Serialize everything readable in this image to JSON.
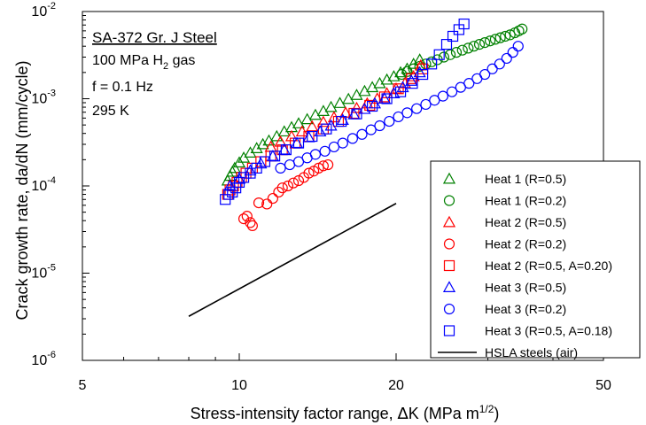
{
  "chart_data": {
    "type": "scatter",
    "xscale": "log",
    "yscale": "log",
    "xlim": [
      5,
      50
    ],
    "ylim": [
      1e-06,
      0.01
    ],
    "xticks": [
      {
        "value": 5,
        "label": "5"
      },
      {
        "value": 10,
        "label": "10"
      },
      {
        "value": 20,
        "label": "20"
      },
      {
        "value": 50,
        "label": "50"
      }
    ],
    "yticks": [
      {
        "value": 1e-06,
        "base": "10",
        "exp": "-6"
      },
      {
        "value": 1e-05,
        "base": "10",
        "exp": "-5"
      },
      {
        "value": 0.0001,
        "base": "10",
        "exp": "-4"
      },
      {
        "value": 0.001,
        "base": "10",
        "exp": "-3"
      },
      {
        "value": 0.01,
        "base": "10",
        "exp": "-2"
      }
    ],
    "xlabel": {
      "main": "Stress-intensity factor range, ",
      "delta": "∆",
      "rest": "K  (MPa m",
      "sup": "1/2",
      "close": ")"
    },
    "ylabel": "Crack growth rate, da/dN  (mm/cycle)",
    "annotation": {
      "title": "SA-372 Gr. J Steel",
      "line2_pre": "100 MPa H",
      "line2_sub": "2",
      "line2_post": " gas",
      "line3": "f = 0.1 Hz",
      "line4": "295 K"
    },
    "legend_position": "bottom-right",
    "series": [
      {
        "name": "Heat 1 (R=0.5)",
        "marker": "triangle",
        "color": "#008000",
        "x": [
          9.5,
          9.6,
          9.7,
          9.8,
          10.0,
          10.2,
          10.5,
          10.8,
          11.1,
          11.4,
          11.8,
          12.2,
          12.6,
          13.0,
          13.5,
          14.0,
          14.5,
          15.0,
          15.6,
          16.2,
          16.8,
          17.4,
          18.0,
          18.6,
          19.2,
          19.8,
          20.4,
          21.0,
          21.6,
          22.2
        ],
        "y": [
          0.000115,
          0.00013,
          0.000145,
          0.00016,
          0.000185,
          0.00021,
          0.00024,
          0.00027,
          0.0003,
          0.00033,
          0.00037,
          0.00042,
          0.00047,
          0.00052,
          0.00058,
          0.00065,
          0.00072,
          0.0008,
          0.00089,
          0.00099,
          0.0011,
          0.00122,
          0.00135,
          0.0015,
          0.00165,
          0.0018,
          0.002,
          0.0022,
          0.0025,
          0.0028
        ]
      },
      {
        "name": "Heat 1 (R=0.2)",
        "marker": "circle",
        "color": "#008000",
        "x": [
          20.5,
          21.0,
          21.6,
          22.2,
          22.8,
          23.4,
          24.0,
          24.7,
          25.4,
          26.1,
          26.8,
          27.5,
          28.2,
          28.9,
          29.6,
          30.3,
          31.0,
          31.7,
          32.4,
          33.1,
          33.8,
          34.4,
          34.9
        ],
        "y": [
          0.0019,
          0.00205,
          0.0022,
          0.00235,
          0.0025,
          0.00265,
          0.0028,
          0.003,
          0.0032,
          0.0034,
          0.0036,
          0.0038,
          0.004,
          0.0042,
          0.0044,
          0.0046,
          0.0048,
          0.005,
          0.0052,
          0.0054,
          0.0057,
          0.006,
          0.0063
        ]
      },
      {
        "name": "Heat 2 (R=0.5)",
        "marker": "triangle",
        "color": "#ff0000",
        "x": [
          11.5,
          12.0,
          12.6,
          13.2,
          13.8,
          14.5,
          15.2,
          16.0,
          16.8,
          17.6,
          18.4,
          19.2,
          20.0,
          20.8,
          21.6,
          22.3
        ],
        "y": [
          0.00028,
          0.00032,
          0.00037,
          0.00042,
          0.00048,
          0.00054,
          0.00061,
          0.00069,
          0.00078,
          0.00088,
          0.001,
          0.00115,
          0.0013,
          0.0015,
          0.0018,
          0.0024
        ]
      },
      {
        "name": "Heat 2 (R=0.2)",
        "marker": "circle",
        "color": "#ff0000",
        "x": [
          10.2,
          10.35,
          10.5,
          10.6,
          10.9,
          11.3,
          11.6,
          11.9,
          12.1,
          12.4,
          12.7,
          13.0,
          13.3,
          13.6,
          13.9,
          14.2,
          14.5,
          14.8
        ],
        "y": 0,
        "y_values": [
          4.2e-05,
          4.5e-05,
          3.8e-05,
          3.5e-05,
          6.4e-05,
          6.2e-05,
          7.2e-05,
          8.5e-05,
          9.5e-05,
          0.0001,
          0.000108,
          0.000115,
          0.000125,
          0.00014,
          0.000148,
          0.00016,
          0.00017,
          0.000175
        ]
      },
      {
        "name": "Heat 2 (R=0.5, A=0.20)",
        "marker": "square",
        "color": "#ff0000",
        "x": [
          9.5,
          9.6,
          9.75,
          9.9,
          10.1,
          10.3,
          10.6,
          11.0,
          11.5,
          12.1,
          12.8,
          13.6,
          14.5,
          15.5,
          16.6,
          17.8,
          19.0,
          20.2,
          21.4,
          22.5
        ],
        "y": [
          8e-05,
          9e-05,
          0.0001,
          0.00011,
          0.000125,
          0.00014,
          0.00016,
          0.00019,
          0.00022,
          0.00026,
          0.00031,
          0.00037,
          0.00045,
          0.00055,
          0.00068,
          0.00084,
          0.00105,
          0.0013,
          0.0017,
          0.0022
        ]
      },
      {
        "name": "Heat 3 (R=0.5)",
        "marker": "triangle",
        "color": "#0000ff",
        "x": [
          9.6,
          10.0,
          10.5,
          11.0,
          11.6,
          12.2,
          12.9,
          13.6,
          14.3,
          15.0,
          15.8,
          16.6,
          17.4,
          18.2,
          19.0,
          19.8,
          20.6,
          21.4,
          22.2
        ],
        "y": [
          0.0001,
          0.00012,
          0.00015,
          0.00018,
          0.00022,
          0.00026,
          0.00031,
          0.00036,
          0.00042,
          0.00049,
          0.00057,
          0.00066,
          0.00076,
          0.00088,
          0.001,
          0.00115,
          0.00135,
          0.0016,
          0.002
        ]
      },
      {
        "name": "Heat 3 (R=0.2)",
        "marker": "circle",
        "color": "#0000ff",
        "x": [
          12.0,
          12.5,
          13.0,
          13.5,
          14.0,
          14.6,
          15.2,
          15.8,
          16.5,
          17.2,
          17.9,
          18.6,
          19.4,
          20.2,
          21.0,
          21.9,
          22.8,
          23.7,
          24.6,
          25.6,
          26.6,
          27.6,
          28.6,
          29.6,
          30.6,
          31.6,
          32.6,
          33.5,
          34.3
        ],
        "y": [
          0.00016,
          0.000175,
          0.00019,
          0.00021,
          0.00023,
          0.00025,
          0.00028,
          0.00031,
          0.00035,
          0.00039,
          0.00044,
          0.00049,
          0.00055,
          0.00062,
          0.00069,
          0.00077,
          0.00086,
          0.00096,
          0.00107,
          0.0012,
          0.00135,
          0.0015,
          0.0017,
          0.0019,
          0.0022,
          0.0025,
          0.0029,
          0.0034,
          0.004
        ]
      },
      {
        "name": "Heat 3 (R=0.5, A=0.18)",
        "marker": "square",
        "color": "#0000ff",
        "x": [
          9.4,
          9.55,
          9.7,
          9.85,
          10.0,
          10.2,
          10.5,
          10.8,
          11.2,
          11.7,
          12.3,
          13.0,
          13.8,
          14.7,
          15.7,
          16.8,
          18.0,
          19.2,
          20.4,
          21.5,
          22.5,
          23.4,
          24.2,
          25.0,
          25.7,
          26.4,
          27.0
        ],
        "y": [
          7e-05,
          8e-05,
          8.5e-05,
          9.5e-05,
          0.00011,
          0.000125,
          0.00014,
          0.00016,
          0.00019,
          0.00022,
          0.00026,
          0.00031,
          0.00037,
          0.00045,
          0.00055,
          0.00067,
          0.00082,
          0.001,
          0.0012,
          0.0015,
          0.0019,
          0.0025,
          0.0032,
          0.0042,
          0.0052,
          0.0062,
          0.0072
        ]
      },
      {
        "name": "HSLA steels (air)",
        "marker": "line",
        "color": "#000000",
        "x": [
          8.0,
          20.0
        ],
        "y": [
          3.2e-06,
          6.3e-05
        ]
      }
    ]
  }
}
